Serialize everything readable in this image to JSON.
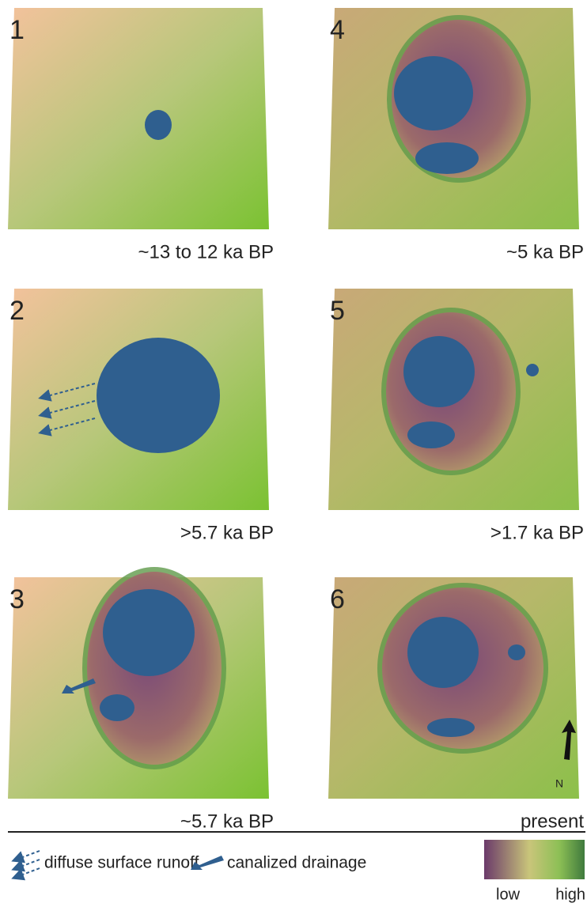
{
  "panels": [
    {
      "number": "1",
      "caption": "~13 to 12 ka BP"
    },
    {
      "number": "2",
      "caption": ">5.7 ka BP"
    },
    {
      "number": "3",
      "caption": "~5.7 ka BP"
    },
    {
      "number": "4",
      "caption": "~5 ka BP"
    },
    {
      "number": "5",
      "caption": ">1.7 ka BP"
    },
    {
      "number": "6",
      "caption": "present"
    }
  ],
  "north": "N",
  "legend": {
    "runoff": "diffuse surface runoff",
    "drainage": "canalized drainage",
    "low": "low",
    "high": "high"
  }
}
